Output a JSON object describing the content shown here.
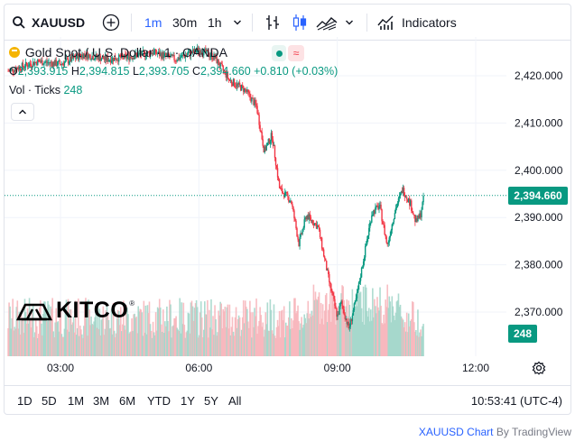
{
  "toolbar": {
    "symbol": "XAUUSD",
    "intervals": [
      "1m",
      "30m",
      "1h"
    ],
    "active_interval": "1m",
    "indicators_label": "Indicators",
    "icons": [
      "search-icon",
      "add-circle-icon",
      "chevron-down-icon",
      "bar-chart-icon",
      "candles-icon",
      "area-chart-icon",
      "indicators-icon"
    ]
  },
  "legend": {
    "title": "Gold Spot / U.S. Dollar · 1 · OANDA",
    "open_label": "O",
    "open": "2,393.915",
    "high_label": "H",
    "high": "2,394.815",
    "low_label": "L",
    "low": "2,393.705",
    "close_label": "C",
    "close": "2,394.660",
    "change": "+0.810 (+0.03%)",
    "volume_label": "Vol · Ticks",
    "volume": "248"
  },
  "logo_text": "KITCO",
  "current_price_label": "2,394.660",
  "current_volume_label": "248",
  "date_ranges": [
    "1D",
    "5D",
    "1M",
    "3M",
    "6M",
    "YTD",
    "1Y",
    "5Y",
    "All"
  ],
  "clock": "10:53:41 (UTC-4)",
  "attribution": {
    "link": "XAUUSD Chart",
    "rest": " By TradingView"
  },
  "colors": {
    "up": "#089981",
    "down": "#f23645",
    "accent": "#2962ff",
    "grid": "#f0f3fa"
  },
  "chart_data": {
    "type": "candlestick",
    "title": "Gold Spot / U.S. Dollar · 1 · OANDA",
    "xlabel": "",
    "ylabel": "",
    "x_ticks": [
      "03:00",
      "06:00",
      "09:00",
      "12:00"
    ],
    "y_ticks": [
      2420,
      2410,
      2400,
      2390,
      2380,
      2370
    ],
    "y_tick_labels": [
      "2,420.000",
      "2,410.000",
      "2,400.000",
      "2,390.000",
      "2,380.000",
      "2,370.000"
    ],
    "ylim": [
      2362,
      2425
    ],
    "grid": true,
    "last_price": 2394.66,
    "price_path": [
      [
        "01:52",
        2421.0
      ],
      [
        "02:30",
        2423.0
      ],
      [
        "03:00",
        2422.5
      ],
      [
        "03:30",
        2424.5
      ],
      [
        "04:00",
        2423.5
      ],
      [
        "04:30",
        2424.0
      ],
      [
        "05:00",
        2425.0
      ],
      [
        "05:30",
        2423.5
      ],
      [
        "06:00",
        2425.5
      ],
      [
        "06:20",
        2424.0
      ],
      [
        "06:40",
        2419.0
      ],
      [
        "07:00",
        2417.0
      ],
      [
        "07:15",
        2413.5
      ],
      [
        "07:25",
        2404.0
      ],
      [
        "07:35",
        2407.5
      ],
      [
        "07:45",
        2396.0
      ],
      [
        "08:00",
        2393.5
      ],
      [
        "08:10",
        2384.5
      ],
      [
        "08:20",
        2390.5
      ],
      [
        "08:35",
        2388.0
      ],
      [
        "08:50",
        2376.0
      ],
      [
        "09:00",
        2369.0
      ],
      [
        "09:05",
        2372.0
      ],
      [
        "09:15",
        2366.5
      ],
      [
        "09:25",
        2373.0
      ],
      [
        "09:35",
        2382.0
      ],
      [
        "09:45",
        2391.0
      ],
      [
        "09:55",
        2392.5
      ],
      [
        "10:05",
        2384.0
      ],
      [
        "10:15",
        2391.5
      ],
      [
        "10:25",
        2396.0
      ],
      [
        "10:35",
        2393.0
      ],
      [
        "10:42",
        2389.0
      ],
      [
        "10:48",
        2390.5
      ],
      [
        "10:53",
        2394.66
      ]
    ],
    "volume_series": {
      "name": "Vol · Ticks",
      "last": 248
    }
  }
}
